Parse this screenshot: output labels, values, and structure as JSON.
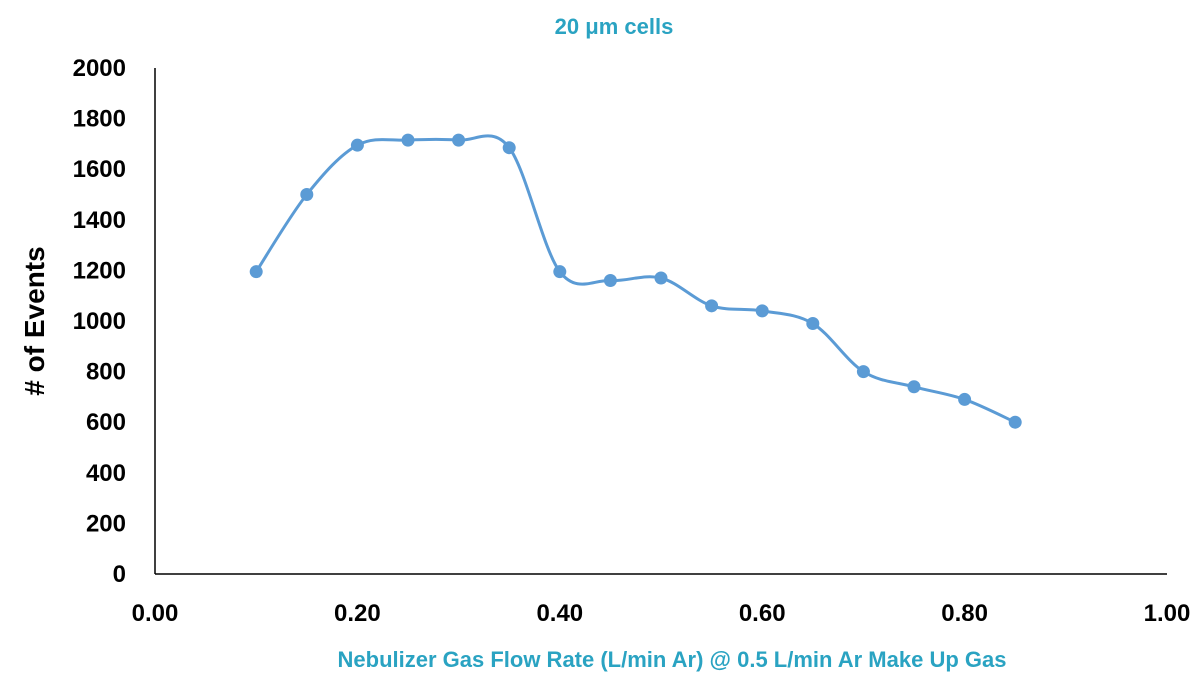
{
  "chart_data": {
    "type": "line",
    "title": "20 μm cells",
    "xlabel": "Nebulizer Gas Flow Rate (L/min Ar) @ 0.5 L/min Ar Make Up Gas",
    "ylabel": "# of Events",
    "xlim": [
      0.0,
      1.0
    ],
    "ylim": [
      0,
      2000
    ],
    "xticks": [
      "0.00",
      "0.20",
      "0.40",
      "0.60",
      "0.80",
      "1.00"
    ],
    "yticks": [
      "0",
      "200",
      "400",
      "600",
      "800",
      "1000",
      "1200",
      "1400",
      "1600",
      "1800",
      "2000"
    ],
    "grid": false,
    "smooth": true,
    "series": [
      {
        "color": "#5b9bd5",
        "x": [
          0.1,
          0.15,
          0.2,
          0.25,
          0.3,
          0.35,
          0.4,
          0.45,
          0.5,
          0.55,
          0.6,
          0.65,
          0.7,
          0.75,
          0.8,
          0.85
        ],
        "y": [
          1195,
          1500,
          1695,
          1715,
          1715,
          1685,
          1195,
          1160,
          1170,
          1060,
          1040,
          990,
          800,
          740,
          690,
          600
        ]
      }
    ]
  }
}
